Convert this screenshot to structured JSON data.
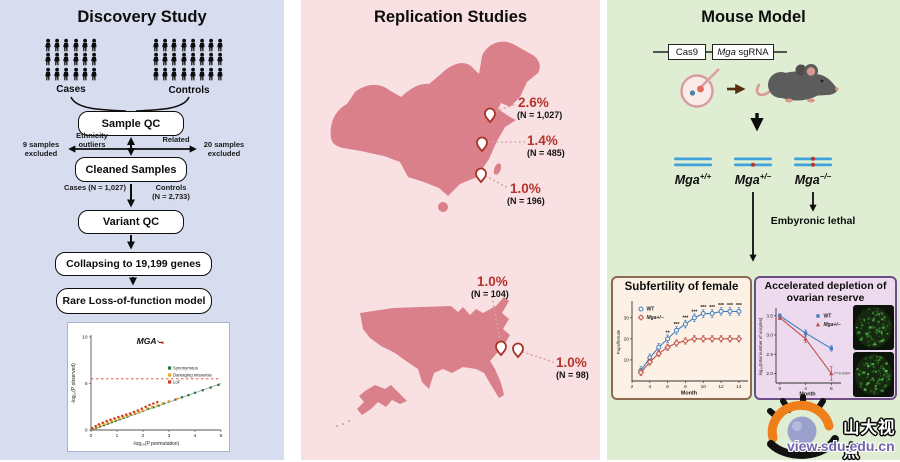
{
  "discovery": {
    "title": "Discovery Study",
    "cases_label": "Cases",
    "controls_label": "Controls",
    "cases_count": 18,
    "controls_count": 24,
    "sample_qc": "Sample QC",
    "ethnicity_outliers": "Ethnicity outliers",
    "related": "Related",
    "excl_left": "9 samples excluded",
    "excl_right": "20 samples excluded",
    "cleaned_samples": "Cleaned Samples",
    "cases_n": "Cases (N = 1,027)",
    "controls_n": "Controls (N = 2,733)",
    "variant_qc": "Variant QC",
    "collapsing": "Collapsing to 19,199 genes",
    "rare_lof": "Rare Loss-of-function model"
  },
  "replication": {
    "title": "Replication Studies",
    "china_pins": [
      {
        "pct": "2.6%",
        "n": "(N = 1,027)"
      },
      {
        "pct": "1.4%",
        "n": "(N = 485)"
      },
      {
        "pct": "1.0%",
        "n": "(N = 196)"
      }
    ],
    "usa_pins": [
      {
        "pct": "1.0%",
        "n": "(N = 104)"
      },
      {
        "pct": "1.0%",
        "n": "(N = 98)"
      }
    ]
  },
  "mouse": {
    "title": "Mouse Model",
    "cas9": "Cas9",
    "sgrna_gene": "Mga",
    "sgrna_suffix": " sgRNA",
    "genotypes": [
      {
        "gene": "Mga",
        "sup": "+/+"
      },
      {
        "gene": "Mga",
        "sup": "+/−"
      },
      {
        "gene": "Mga",
        "sup": "−/−"
      }
    ],
    "embryonic_lethal": "Embyronic lethal"
  },
  "watermark": {
    "cn": "山大视点",
    "url": "view.sdu.edu.cn"
  },
  "colors": {
    "accent_red": "#b5342a",
    "map_rose": "#d9808a",
    "chromosome_blue": "#3fa3da",
    "wt_blue": "#3f7fc1",
    "mutant_red": "#c0504d"
  },
  "chart_data": [
    {
      "type": "scatter",
      "title": "",
      "annotation": {
        "text": "MGA",
        "x": 2.75,
        "y": 9.4
      },
      "xlabel": "-log₁₀(P permutation)",
      "ylabel": "-log₁₀(P observed)",
      "xlim": [
        0,
        5
      ],
      "ylim": [
        0,
        10
      ],
      "xticks": [
        0,
        1,
        2,
        3,
        4,
        5
      ],
      "yticks": [
        0,
        5,
        10
      ],
      "threshold_y": 5.5,
      "identity_line": true,
      "legend_position": "right-middle",
      "series": [
        {
          "name": "Synonymous",
          "color": "#1e7a34",
          "points": [
            [
              0.05,
              0.04
            ],
            [
              0.2,
              0.22
            ],
            [
              0.35,
              0.38
            ],
            [
              0.5,
              0.52
            ],
            [
              0.65,
              0.68
            ],
            [
              0.8,
              0.85
            ],
            [
              0.95,
              1.0
            ],
            [
              1.1,
              1.16
            ],
            [
              1.25,
              1.3
            ],
            [
              1.4,
              1.45
            ],
            [
              1.55,
              1.62
            ],
            [
              1.7,
              1.75
            ],
            [
              1.85,
              1.92
            ],
            [
              2.0,
              2.05
            ],
            [
              2.2,
              2.28
            ],
            [
              2.4,
              2.45
            ],
            [
              2.6,
              2.62
            ],
            [
              2.8,
              2.85
            ],
            [
              3.0,
              3.05
            ],
            [
              3.25,
              3.28
            ],
            [
              3.5,
              3.52
            ],
            [
              3.75,
              3.75
            ],
            [
              4.0,
              4.0
            ],
            [
              4.3,
              4.28
            ],
            [
              4.6,
              4.55
            ],
            [
              4.9,
              4.85
            ]
          ]
        },
        {
          "name": "Damaging missense",
          "color": "#efa125",
          "points": [
            [
              0.05,
              0.12
            ],
            [
              0.2,
              0.3
            ],
            [
              0.35,
              0.5
            ],
            [
              0.5,
              0.65
            ],
            [
              0.65,
              0.8
            ],
            [
              0.8,
              0.95
            ],
            [
              0.95,
              1.1
            ],
            [
              1.1,
              1.25
            ],
            [
              1.25,
              1.4
            ],
            [
              1.4,
              1.55
            ],
            [
              1.55,
              1.68
            ],
            [
              1.7,
              1.8
            ],
            [
              1.85,
              1.95
            ],
            [
              2.0,
              2.1
            ],
            [
              2.15,
              2.3
            ],
            [
              2.35,
              2.5
            ],
            [
              2.55,
              2.65
            ],
            [
              2.75,
              2.85
            ],
            [
              3.0,
              3.1
            ],
            [
              3.3,
              3.35
            ]
          ]
        },
        {
          "name": "LoF",
          "color": "#d23b1e",
          "points": [
            [
              0.05,
              0.2
            ],
            [
              0.18,
              0.42
            ],
            [
              0.3,
              0.6
            ],
            [
              0.45,
              0.78
            ],
            [
              0.6,
              0.95
            ],
            [
              0.75,
              1.1
            ],
            [
              0.9,
              1.25
            ],
            [
              1.05,
              1.4
            ],
            [
              1.2,
              1.52
            ],
            [
              1.35,
              1.65
            ],
            [
              1.5,
              1.78
            ],
            [
              1.65,
              1.95
            ],
            [
              1.8,
              2.1
            ],
            [
              1.95,
              2.3
            ],
            [
              2.1,
              2.5
            ],
            [
              2.25,
              2.7
            ],
            [
              2.4,
              2.85
            ],
            [
              2.55,
              3.0
            ],
            [
              2.75,
              9.4
            ]
          ]
        }
      ]
    },
    {
      "type": "line",
      "title": "Subfertility of female",
      "xlabel": "Month",
      "ylabel": "Pups/female",
      "x": [
        3,
        4,
        5,
        6,
        7,
        8,
        9,
        10,
        11,
        12,
        13,
        14
      ],
      "xticks": [
        2,
        4,
        6,
        8,
        10,
        12,
        14
      ],
      "yticks": [
        10,
        20,
        30
      ],
      "xlim": [
        2,
        14.8
      ],
      "ylim": [
        0,
        37
      ],
      "ytick_decimals": 0,
      "significance": [
        "",
        "",
        "",
        "**",
        "***",
        "***",
        "***",
        "***",
        "***",
        "***",
        "***",
        "***"
      ],
      "series": [
        {
          "name": "WT",
          "color": "#3f7fc1",
          "marker": "circle",
          "err": 1.8,
          "values": [
            5,
            11,
            16,
            20,
            24,
            27,
            30,
            32,
            32,
            33,
            33,
            33
          ]
        },
        {
          "name": "Mga+/−",
          "color": "#c0504d",
          "marker": "diamond",
          "err": 1.5,
          "values": [
            4,
            9,
            13,
            16,
            18,
            19,
            20,
            20,
            20,
            20,
            20,
            20
          ]
        }
      ]
    },
    {
      "type": "line",
      "title": "Accelerated depletion of ovarian reserve",
      "xlabel": "Month",
      "ylabel": "log₁₀(total number of oocytes)",
      "x": [
        0,
        4,
        8
      ],
      "xticks": [
        0,
        4,
        8
      ],
      "yticks": [
        2.0,
        2.5,
        3.0,
        3.5
      ],
      "xlim": [
        -0.6,
        9.2
      ],
      "ylim": [
        1.75,
        3.65
      ],
      "ytick_decimals": 1,
      "p_label": "P=0.0084",
      "series": [
        {
          "name": "WT",
          "color": "#3f7fc1",
          "marker": "square",
          "values": [
            3.5,
            3.05,
            2.65
          ],
          "errors": [
            0.05,
            0.08,
            0.07
          ]
        },
        {
          "name": "Mga+/−",
          "color": "#c0504d",
          "marker": "triangle",
          "values": [
            3.45,
            2.9,
            2.0
          ],
          "errors": [
            0.05,
            0.1,
            0.18
          ]
        }
      ]
    }
  ]
}
